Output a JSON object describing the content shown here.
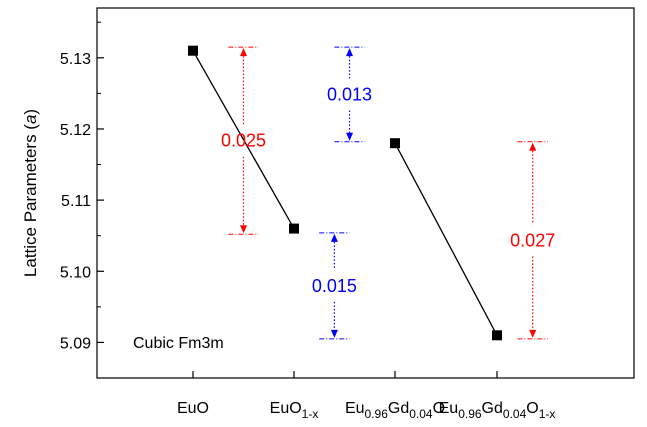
{
  "chart_data": {
    "type": "scatter",
    "ylabel": "Lattice Parameters (a)",
    "ylim": [
      5.085,
      5.137
    ],
    "yticks": [
      "5.09",
      "5.10",
      "5.11",
      "5.12",
      "5.13"
    ],
    "annotation": "Cubic Fm3m",
    "categories": [
      {
        "parts": [
          {
            "t": "EuO"
          }
        ]
      },
      {
        "parts": [
          {
            "t": "EuO"
          },
          {
            "t": "1-x",
            "sub": true
          }
        ]
      },
      {
        "parts": [
          {
            "t": "Eu"
          },
          {
            "t": "0.96",
            "sub": true
          },
          {
            "t": "Gd"
          },
          {
            "t": "0.04",
            "sub": true
          },
          {
            "t": "O"
          }
        ]
      },
      {
        "parts": [
          {
            "t": "Eu"
          },
          {
            "t": "0.96",
            "sub": true
          },
          {
            "t": "Gd"
          },
          {
            "t": "0.04",
            "sub": true
          },
          {
            "t": "O"
          },
          {
            "t": "1-x",
            "sub": true
          }
        ]
      }
    ],
    "values": [
      5.131,
      5.106,
      5.118,
      5.091
    ],
    "connections": [
      [
        0,
        1
      ],
      [
        2,
        3
      ]
    ],
    "differences": [
      {
        "label": "0.025",
        "color": "#ff0000",
        "top": 5.1315,
        "bottom": 5.1052,
        "xpos": 0.5,
        "span": [
          0.35,
          0.65
        ]
      },
      {
        "label": "0.013",
        "color": "#0000ff",
        "top": 5.1315,
        "bottom": 5.1182,
        "xpos": 1.55,
        "span": [
          1.4,
          1.7
        ]
      },
      {
        "label": "0.015",
        "color": "#0000ff",
        "top": 5.1054,
        "bottom": 5.0905,
        "xpos": 1.4,
        "span": [
          1.25,
          1.55
        ]
      },
      {
        "label": "0.027",
        "color": "#ff0000",
        "top": 5.1182,
        "bottom": 5.0905,
        "xpos": 3.35,
        "span": [
          3.2,
          3.5
        ]
      }
    ]
  }
}
